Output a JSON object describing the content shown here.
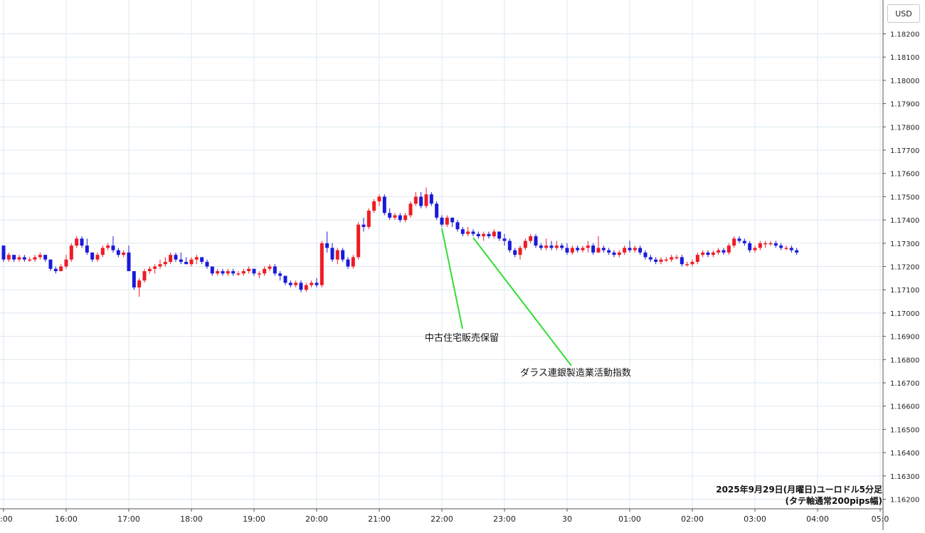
{
  "currency_label": "USD",
  "caption": {
    "line1": "2025年9月29日(月曜日)ユーロドル5分足",
    "line2": "(タテ軸通常200pips幅)"
  },
  "colors": {
    "up": "#ee1c25",
    "down": "#1a1adb",
    "annotation": "#33dd33",
    "grid": "#dde8f0"
  },
  "chart_data": {
    "type": "candlestick",
    "interval_minutes": 5,
    "y_axis": {
      "ylim": [
        1.1615,
        1.1825
      ],
      "ticks": [
        "1.18200",
        "1.18100",
        "1.18000",
        "1.17900",
        "1.17800",
        "1.17700",
        "1.17600",
        "1.17500",
        "1.17400",
        "1.17300",
        "1.17200",
        "1.17100",
        "1.17000",
        "1.16900",
        "1.16800",
        "1.16700",
        "1.16600",
        "1.16500",
        "1.16400",
        "1.16300",
        "1.16200"
      ]
    },
    "x_axis": {
      "ticks": [
        ":00",
        "16:00",
        "17:00",
        "18:00",
        "19:00",
        "20:00",
        "21:00",
        "22:00",
        "23:00",
        "30",
        "01:00",
        "02:00",
        "03:00",
        "04:00",
        "05:0"
      ]
    },
    "candles": [
      [
        1.1729,
        1.1729,
        1.1722,
        1.1723
      ],
      [
        1.1723,
        1.1726,
        1.1722,
        1.1725
      ],
      [
        1.1725,
        1.1725,
        1.1722,
        1.1723
      ],
      [
        1.1723,
        1.1725,
        1.1722,
        1.1724
      ],
      [
        1.1724,
        1.1725,
        1.1722,
        1.1723
      ],
      [
        1.1723,
        1.1724,
        1.1722,
        1.1723
      ],
      [
        1.1723,
        1.1725,
        1.1722,
        1.1724
      ],
      [
        1.1724,
        1.1726,
        1.1723,
        1.1725
      ],
      [
        1.1725,
        1.1725,
        1.1722,
        1.1723
      ],
      [
        1.1723,
        1.1723,
        1.1718,
        1.1719
      ],
      [
        1.1719,
        1.172,
        1.1717,
        1.1718
      ],
      [
        1.1718,
        1.1721,
        1.1718,
        1.172
      ],
      [
        1.172,
        1.1725,
        1.1719,
        1.1723
      ],
      [
        1.1723,
        1.173,
        1.1722,
        1.1729
      ],
      [
        1.1729,
        1.1733,
        1.1728,
        1.1732
      ],
      [
        1.1732,
        1.1733,
        1.1728,
        1.1729
      ],
      [
        1.1729,
        1.1732,
        1.1725,
        1.1726
      ],
      [
        1.1726,
        1.1726,
        1.1722,
        1.1723
      ],
      [
        1.1723,
        1.1726,
        1.1722,
        1.1725
      ],
      [
        1.1725,
        1.1729,
        1.1724,
        1.1728
      ],
      [
        1.1728,
        1.173,
        1.1727,
        1.1729
      ],
      [
        1.1729,
        1.1733,
        1.1726,
        1.1727
      ],
      [
        1.1727,
        1.1728,
        1.1724,
        1.1725
      ],
      [
        1.1725,
        1.1727,
        1.1724,
        1.1726
      ],
      [
        1.1726,
        1.1729,
        1.1718,
        1.1718
      ],
      [
        1.1718,
        1.1718,
        1.171,
        1.1711
      ],
      [
        1.1711,
        1.1715,
        1.1707,
        1.1714
      ],
      [
        1.1714,
        1.1719,
        1.1713,
        1.1718
      ],
      [
        1.1718,
        1.172,
        1.1717,
        1.1719
      ],
      [
        1.1719,
        1.1721,
        1.1717,
        1.172
      ],
      [
        1.172,
        1.1723,
        1.1719,
        1.1721
      ],
      [
        1.1721,
        1.1724,
        1.172,
        1.1722
      ],
      [
        1.1722,
        1.1726,
        1.1721,
        1.1725
      ],
      [
        1.1725,
        1.1726,
        1.1722,
        1.1723
      ],
      [
        1.1723,
        1.1726,
        1.1721,
        1.1722
      ],
      [
        1.1722,
        1.1724,
        1.1721,
        1.1721
      ],
      [
        1.1721,
        1.1724,
        1.172,
        1.1723
      ],
      [
        1.1723,
        1.1725,
        1.1721,
        1.1724
      ],
      [
        1.1724,
        1.1724,
        1.1721,
        1.1722
      ],
      [
        1.1722,
        1.1723,
        1.1719,
        1.172
      ],
      [
        1.172,
        1.172,
        1.1716,
        1.1717
      ],
      [
        1.1717,
        1.1719,
        1.1716,
        1.1718
      ],
      [
        1.1718,
        1.1719,
        1.1716,
        1.1717
      ],
      [
        1.1717,
        1.1719,
        1.1716,
        1.1718
      ],
      [
        1.1718,
        1.1719,
        1.1716,
        1.1717
      ],
      [
        1.1717,
        1.1718,
        1.1716,
        1.1717
      ],
      [
        1.1717,
        1.1719,
        1.1716,
        1.1718
      ],
      [
        1.1718,
        1.172,
        1.1717,
        1.1719
      ],
      [
        1.1719,
        1.1719,
        1.1716,
        1.1717
      ],
      [
        1.1717,
        1.1718,
        1.1715,
        1.1717
      ],
      [
        1.1717,
        1.172,
        1.1716,
        1.1719
      ],
      [
        1.1719,
        1.1721,
        1.1718,
        1.172
      ],
      [
        1.172,
        1.1721,
        1.1716,
        1.1717
      ],
      [
        1.1717,
        1.1718,
        1.1714,
        1.1716
      ],
      [
        1.1716,
        1.1716,
        1.1712,
        1.1713
      ],
      [
        1.1713,
        1.1714,
        1.1711,
        1.1712
      ],
      [
        1.1712,
        1.1714,
        1.1711,
        1.1713
      ],
      [
        1.1713,
        1.1714,
        1.1709,
        1.171
      ],
      [
        1.171,
        1.1713,
        1.1709,
        1.1712
      ],
      [
        1.1712,
        1.1714,
        1.1711,
        1.1713
      ],
      [
        1.1713,
        1.1715,
        1.1711,
        1.1712
      ],
      [
        1.1712,
        1.1731,
        1.1711,
        1.173
      ],
      [
        1.173,
        1.1735,
        1.1726,
        1.1728
      ],
      [
        1.1728,
        1.173,
        1.1722,
        1.1723
      ],
      [
        1.1723,
        1.1728,
        1.1721,
        1.1727
      ],
      [
        1.1727,
        1.1728,
        1.1722,
        1.1723
      ],
      [
        1.1723,
        1.1724,
        1.1719,
        1.172
      ],
      [
        1.172,
        1.1725,
        1.1719,
        1.1724
      ],
      [
        1.1724,
        1.1739,
        1.1723,
        1.1738
      ],
      [
        1.1738,
        1.1741,
        1.1735,
        1.1737
      ],
      [
        1.1737,
        1.1745,
        1.1736,
        1.1744
      ],
      [
        1.1744,
        1.1749,
        1.1743,
        1.1748
      ],
      [
        1.1748,
        1.1751,
        1.1746,
        1.175
      ],
      [
        1.175,
        1.1751,
        1.1742,
        1.1743
      ],
      [
        1.1743,
        1.1745,
        1.174,
        1.1741
      ],
      [
        1.1741,
        1.1743,
        1.174,
        1.1742
      ],
      [
        1.1742,
        1.1743,
        1.1739,
        1.174
      ],
      [
        1.174,
        1.1743,
        1.1739,
        1.1742
      ],
      [
        1.1742,
        1.1748,
        1.1741,
        1.1747
      ],
      [
        1.1747,
        1.1752,
        1.1746,
        1.175
      ],
      [
        1.175,
        1.1752,
        1.1745,
        1.1746
      ],
      [
        1.1746,
        1.1754,
        1.1745,
        1.1751
      ],
      [
        1.1751,
        1.1752,
        1.1746,
        1.1747
      ],
      [
        1.1747,
        1.1748,
        1.174,
        1.1741
      ],
      [
        1.1741,
        1.1742,
        1.1737,
        1.1738
      ],
      [
        1.1738,
        1.1742,
        1.1737,
        1.1741
      ],
      [
        1.1741,
        1.1741,
        1.1737,
        1.1739
      ],
      [
        1.1739,
        1.174,
        1.1735,
        1.1736
      ],
      [
        1.1736,
        1.1737,
        1.1733,
        1.1734
      ],
      [
        1.1734,
        1.1737,
        1.1733,
        1.1735
      ],
      [
        1.1735,
        1.1736,
        1.1733,
        1.1734
      ],
      [
        1.1734,
        1.1735,
        1.1732,
        1.1733
      ],
      [
        1.1733,
        1.1735,
        1.1731,
        1.1734
      ],
      [
        1.1734,
        1.1735,
        1.1732,
        1.1733
      ],
      [
        1.1733,
        1.1736,
        1.1732,
        1.1735
      ],
      [
        1.1735,
        1.1735,
        1.1731,
        1.1732
      ],
      [
        1.1732,
        1.1734,
        1.1729,
        1.1731
      ],
      [
        1.1731,
        1.1732,
        1.1726,
        1.1727
      ],
      [
        1.1727,
        1.1728,
        1.1724,
        1.1725
      ],
      [
        1.1725,
        1.1729,
        1.1723,
        1.1728
      ],
      [
        1.1728,
        1.1732,
        1.1727,
        1.1731
      ],
      [
        1.1731,
        1.1734,
        1.173,
        1.1733
      ],
      [
        1.1733,
        1.1734,
        1.1728,
        1.1729
      ],
      [
        1.1729,
        1.173,
        1.1727,
        1.1728
      ],
      [
        1.1728,
        1.1732,
        1.1727,
        1.1729
      ],
      [
        1.1729,
        1.1731,
        1.1727,
        1.1728
      ],
      [
        1.1728,
        1.1731,
        1.1727,
        1.1729
      ],
      [
        1.1729,
        1.173,
        1.1727,
        1.1728
      ],
      [
        1.1728,
        1.173,
        1.1725,
        1.1726
      ],
      [
        1.1726,
        1.1729,
        1.1725,
        1.1728
      ],
      [
        1.1728,
        1.1729,
        1.1726,
        1.1727
      ],
      [
        1.1727,
        1.1729,
        1.1726,
        1.1728
      ],
      [
        1.1728,
        1.1731,
        1.1726,
        1.1729
      ],
      [
        1.1729,
        1.173,
        1.1725,
        1.1726
      ],
      [
        1.1726,
        1.1733,
        1.1726,
        1.1728
      ],
      [
        1.1728,
        1.1729,
        1.1726,
        1.1727
      ],
      [
        1.1727,
        1.1728,
        1.1725,
        1.1726
      ],
      [
        1.1726,
        1.1727,
        1.1724,
        1.1725
      ],
      [
        1.1725,
        1.1727,
        1.1724,
        1.1726
      ],
      [
        1.1726,
        1.1729,
        1.1725,
        1.1728
      ],
      [
        1.1728,
        1.1731,
        1.1726,
        1.1727
      ],
      [
        1.1727,
        1.1729,
        1.1726,
        1.1728
      ],
      [
        1.1728,
        1.1729,
        1.1725,
        1.1726
      ],
      [
        1.1726,
        1.1727,
        1.1723,
        1.1724
      ],
      [
        1.1724,
        1.1725,
        1.1722,
        1.1723
      ],
      [
        1.1723,
        1.1724,
        1.1721,
        1.1722
      ],
      [
        1.1722,
        1.1724,
        1.1721,
        1.1723
      ],
      [
        1.1723,
        1.1724,
        1.1722,
        1.1723
      ],
      [
        1.1723,
        1.1725,
        1.1722,
        1.1724
      ],
      [
        1.1724,
        1.1725,
        1.1723,
        1.1724
      ],
      [
        1.1724,
        1.1725,
        1.172,
        1.1721
      ],
      [
        1.1721,
        1.1722,
        1.172,
        1.1721
      ],
      [
        1.1721,
        1.1723,
        1.172,
        1.1722
      ],
      [
        1.1722,
        1.1726,
        1.1721,
        1.1725
      ],
      [
        1.1725,
        1.1727,
        1.1724,
        1.1726
      ],
      [
        1.1726,
        1.1727,
        1.1724,
        1.1725
      ],
      [
        1.1725,
        1.1727,
        1.1724,
        1.1726
      ],
      [
        1.1726,
        1.1728,
        1.1725,
        1.1727
      ],
      [
        1.1727,
        1.1728,
        1.1725,
        1.1726
      ],
      [
        1.1726,
        1.173,
        1.1725,
        1.1729
      ],
      [
        1.1729,
        1.1733,
        1.1728,
        1.1732
      ],
      [
        1.1732,
        1.1733,
        1.173,
        1.1731
      ],
      [
        1.1731,
        1.1732,
        1.1729,
        1.173
      ],
      [
        1.173,
        1.1731,
        1.1726,
        1.1727
      ],
      [
        1.1727,
        1.1729,
        1.1726,
        1.1728
      ],
      [
        1.1728,
        1.1731,
        1.1727,
        1.173
      ],
      [
        1.173,
        1.1731,
        1.1728,
        1.173
      ],
      [
        1.173,
        1.1731,
        1.1729,
        1.173
      ],
      [
        1.173,
        1.1731,
        1.1728,
        1.1729
      ],
      [
        1.1729,
        1.173,
        1.1727,
        1.1728
      ],
      [
        1.1728,
        1.1729,
        1.1727,
        1.1728
      ],
      [
        1.1728,
        1.1729,
        1.1726,
        1.1727
      ],
      [
        1.1727,
        1.1728,
        1.1725,
        1.1726
      ]
    ],
    "annotations": [
      {
        "label": "中古住宅販売保留",
        "candle_index": 84
      },
      {
        "label": "ダラス連銀製造業活動指数",
        "candle_index": 90
      }
    ]
  }
}
